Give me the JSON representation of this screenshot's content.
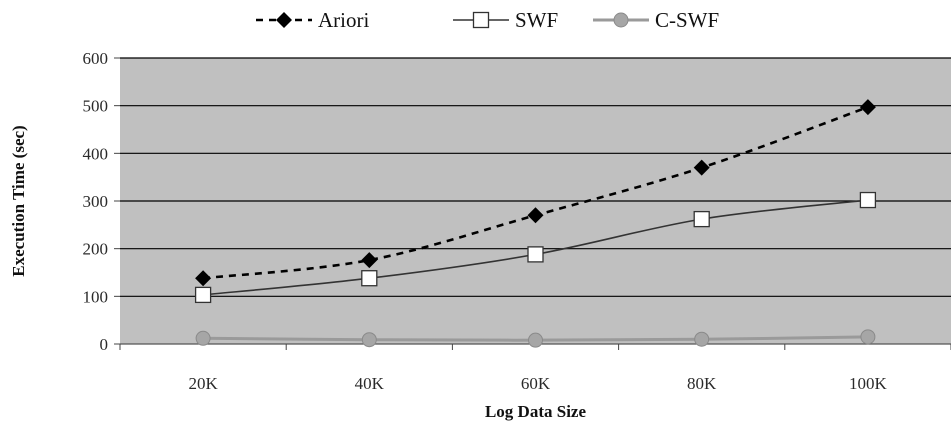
{
  "chart_data": {
    "type": "line",
    "title": "",
    "xlabel": "Log Data Size",
    "ylabel": "Execution Time (sec)",
    "categories": [
      "20K",
      "40K",
      "60K",
      "80K",
      "100K"
    ],
    "ylim": [
      0,
      600
    ],
    "yticks": [
      "0",
      "100",
      "200",
      "300",
      "400",
      "500",
      "600"
    ],
    "grid": true,
    "legend_position": "top",
    "series": [
      {
        "name": "Ariori",
        "values": [
          138,
          176,
          270,
          370,
          497
        ],
        "style": "dashed",
        "marker": "diamond",
        "color": "#000000"
      },
      {
        "name": "SWF",
        "values": [
          103,
          138,
          188,
          262,
          302
        ],
        "style": "solid",
        "marker": "square",
        "color": "#333333"
      },
      {
        "name": "C-SWF",
        "values": [
          12,
          9,
          8,
          10,
          15
        ],
        "style": "solid",
        "marker": "circle",
        "color": "#9a9a9a"
      }
    ],
    "colors": {
      "plot_background": "#c0c0c0",
      "gridline": "#000000"
    }
  }
}
